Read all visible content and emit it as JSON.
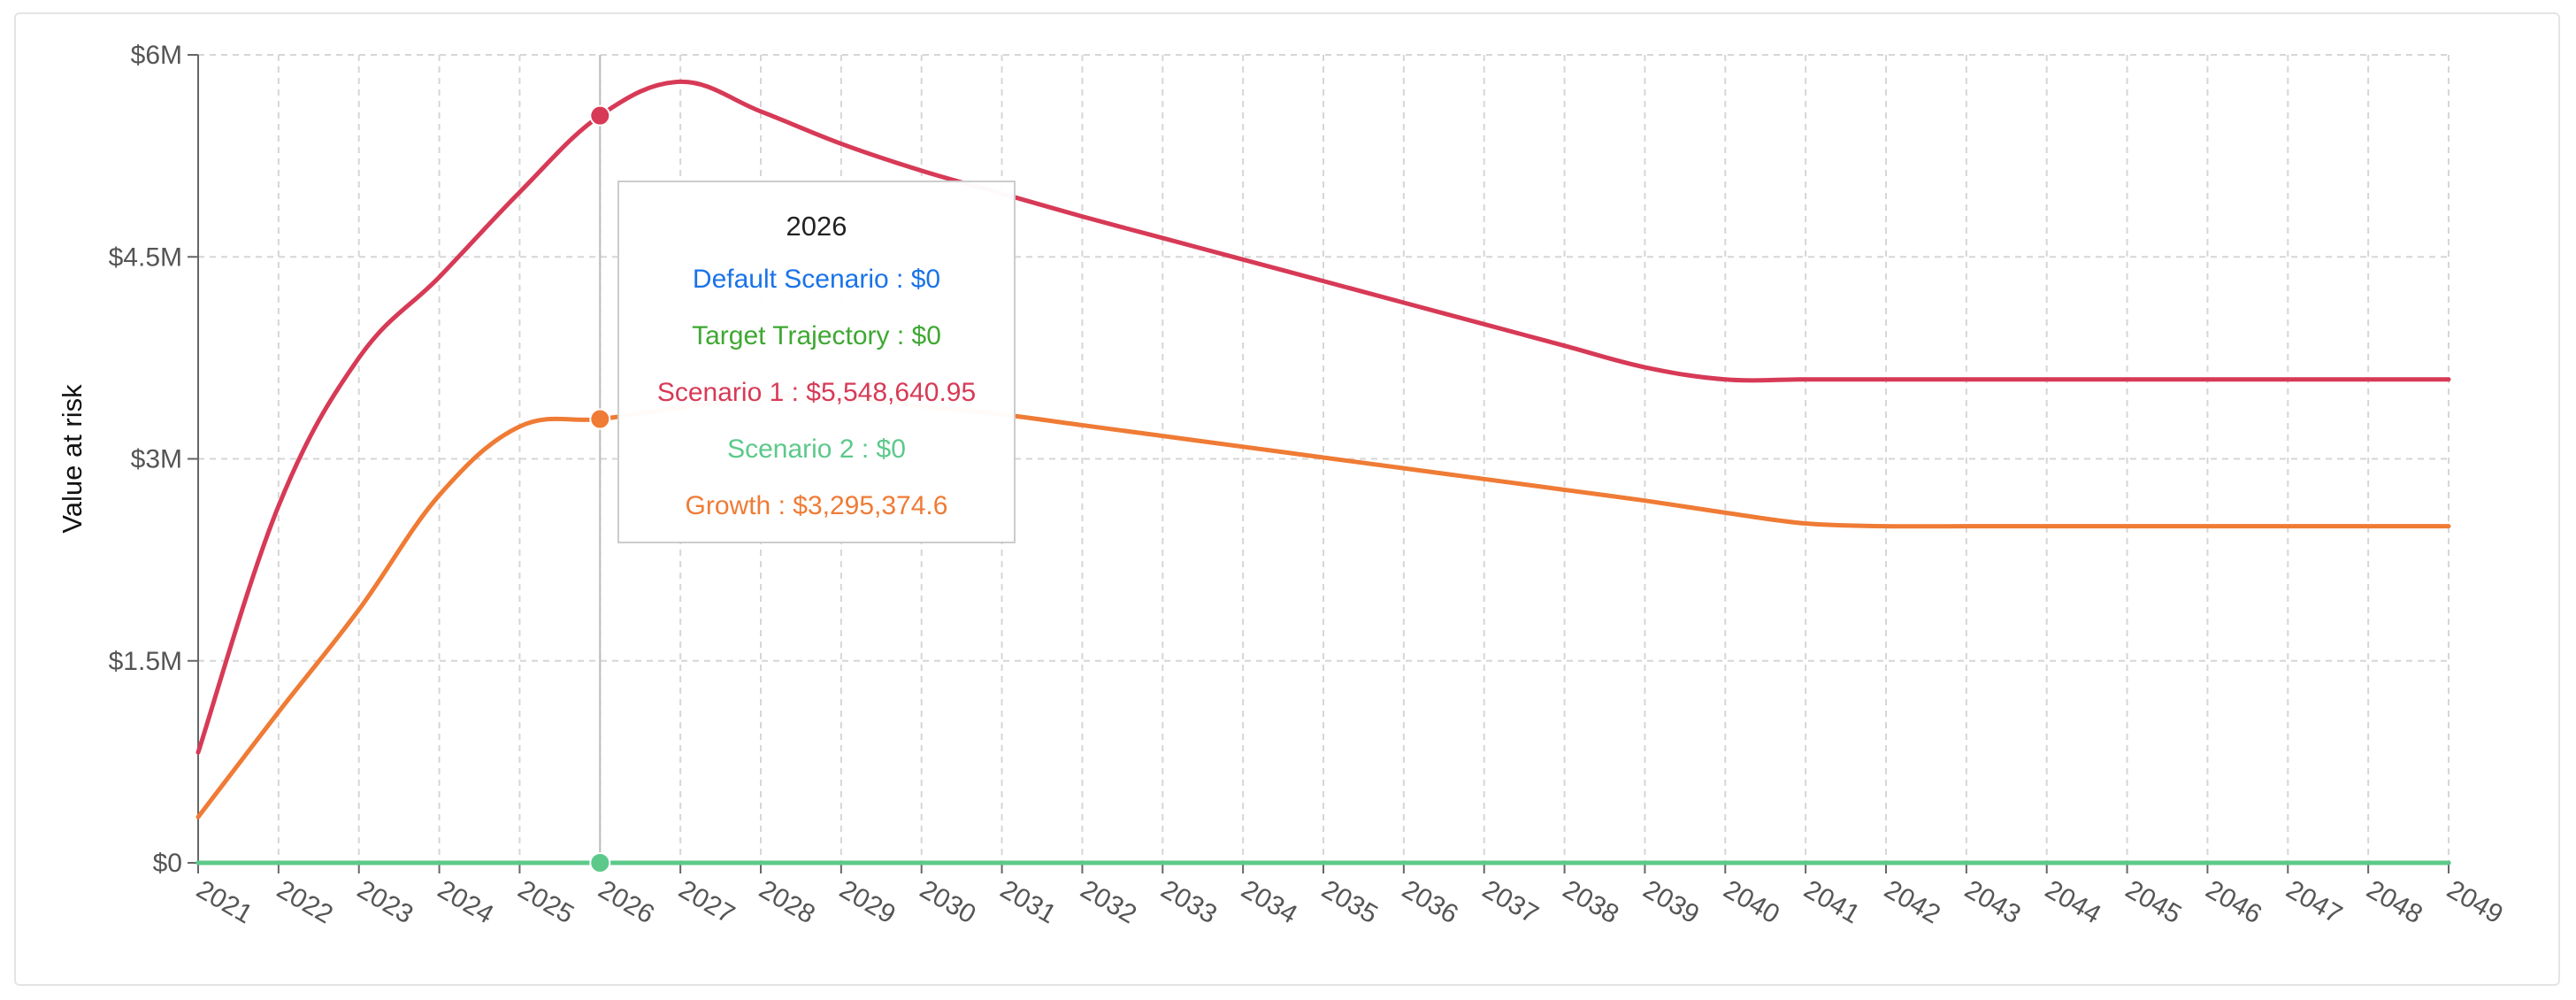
{
  "chart_data": {
    "type": "line",
    "ylabel": "Value at risk",
    "xlabel": "",
    "x": [
      2021,
      2022,
      2023,
      2024,
      2025,
      2026,
      2027,
      2028,
      2029,
      2030,
      2031,
      2032,
      2033,
      2034,
      2035,
      2036,
      2037,
      2038,
      2039,
      2040,
      2041,
      2042,
      2043,
      2044,
      2045,
      2046,
      2047,
      2048,
      2049
    ],
    "y_ticks": [
      "$0",
      "$1.5M",
      "$3M",
      "$4.5M",
      "$6M"
    ],
    "y_tick_values": [
      0,
      1500000,
      3000000,
      4500000,
      6000000
    ],
    "ylim": [
      0,
      6000000
    ],
    "grid": true,
    "legend": "none",
    "series": [
      {
        "name": "Default Scenario",
        "color": "#1a73e8",
        "values": [
          0,
          0,
          0,
          0,
          0,
          0,
          0,
          0,
          0,
          0,
          0,
          0,
          0,
          0,
          0,
          0,
          0,
          0,
          0,
          0,
          0,
          0,
          0,
          0,
          0,
          0,
          0,
          0,
          0
        ]
      },
      {
        "name": "Target Trajectory",
        "color": "#3ea832",
        "values": [
          0,
          0,
          0,
          0,
          0,
          0,
          0,
          0,
          0,
          0,
          0,
          0,
          0,
          0,
          0,
          0,
          0,
          0,
          0,
          0,
          0,
          0,
          0,
          0,
          0,
          0,
          0,
          0,
          0
        ]
      },
      {
        "name": "Scenario 1",
        "color": "#d73a56",
        "values": [
          820000,
          2650000,
          3750000,
          4350000,
          4980000,
          5548640.95,
          5800000,
          5580000,
          5340000,
          5140000,
          4970000,
          4800000,
          4640000,
          4480000,
          4320000,
          4160000,
          4000000,
          3840000,
          3680000,
          3590000,
          3590000,
          3590000,
          3590000,
          3590000,
          3590000,
          3590000,
          3590000,
          3590000,
          3590000
        ]
      },
      {
        "name": "Scenario 2",
        "color": "#5cc98a",
        "values": [
          0,
          0,
          0,
          0,
          0,
          0,
          0,
          0,
          0,
          0,
          0,
          0,
          0,
          0,
          0,
          0,
          0,
          0,
          0,
          0,
          0,
          0,
          0,
          0,
          0,
          0,
          0,
          0,
          0
        ]
      },
      {
        "name": "Growth",
        "color": "#ef7b35",
        "values": [
          340000,
          1120000,
          1880000,
          2730000,
          3240000,
          3295374.6,
          3380000,
          3460000,
          3450000,
          3390000,
          3330000,
          3250000,
          3170000,
          3090000,
          3010000,
          2930000,
          2850000,
          2770000,
          2690000,
          2600000,
          2520000,
          2500000,
          2500000,
          2500000,
          2500000,
          2500000,
          2500000,
          2500000,
          2500000
        ]
      }
    ],
    "tooltip": {
      "title": "2026",
      "rows": [
        {
          "label": "Default Scenario",
          "value": "$0",
          "color": "#1a73e8"
        },
        {
          "label": "Target Trajectory",
          "value": "$0",
          "color": "#3ea832"
        },
        {
          "label": "Scenario 1",
          "value": "$5,548,640.95",
          "color": "#d73a56"
        },
        {
          "label": "Scenario 2",
          "value": "$0",
          "color": "#5cc98a"
        },
        {
          "label": "Growth",
          "value": "$3,295,374.6",
          "color": "#ef7b35"
        }
      ],
      "separator": " : "
    },
    "hover_x": 2026
  }
}
